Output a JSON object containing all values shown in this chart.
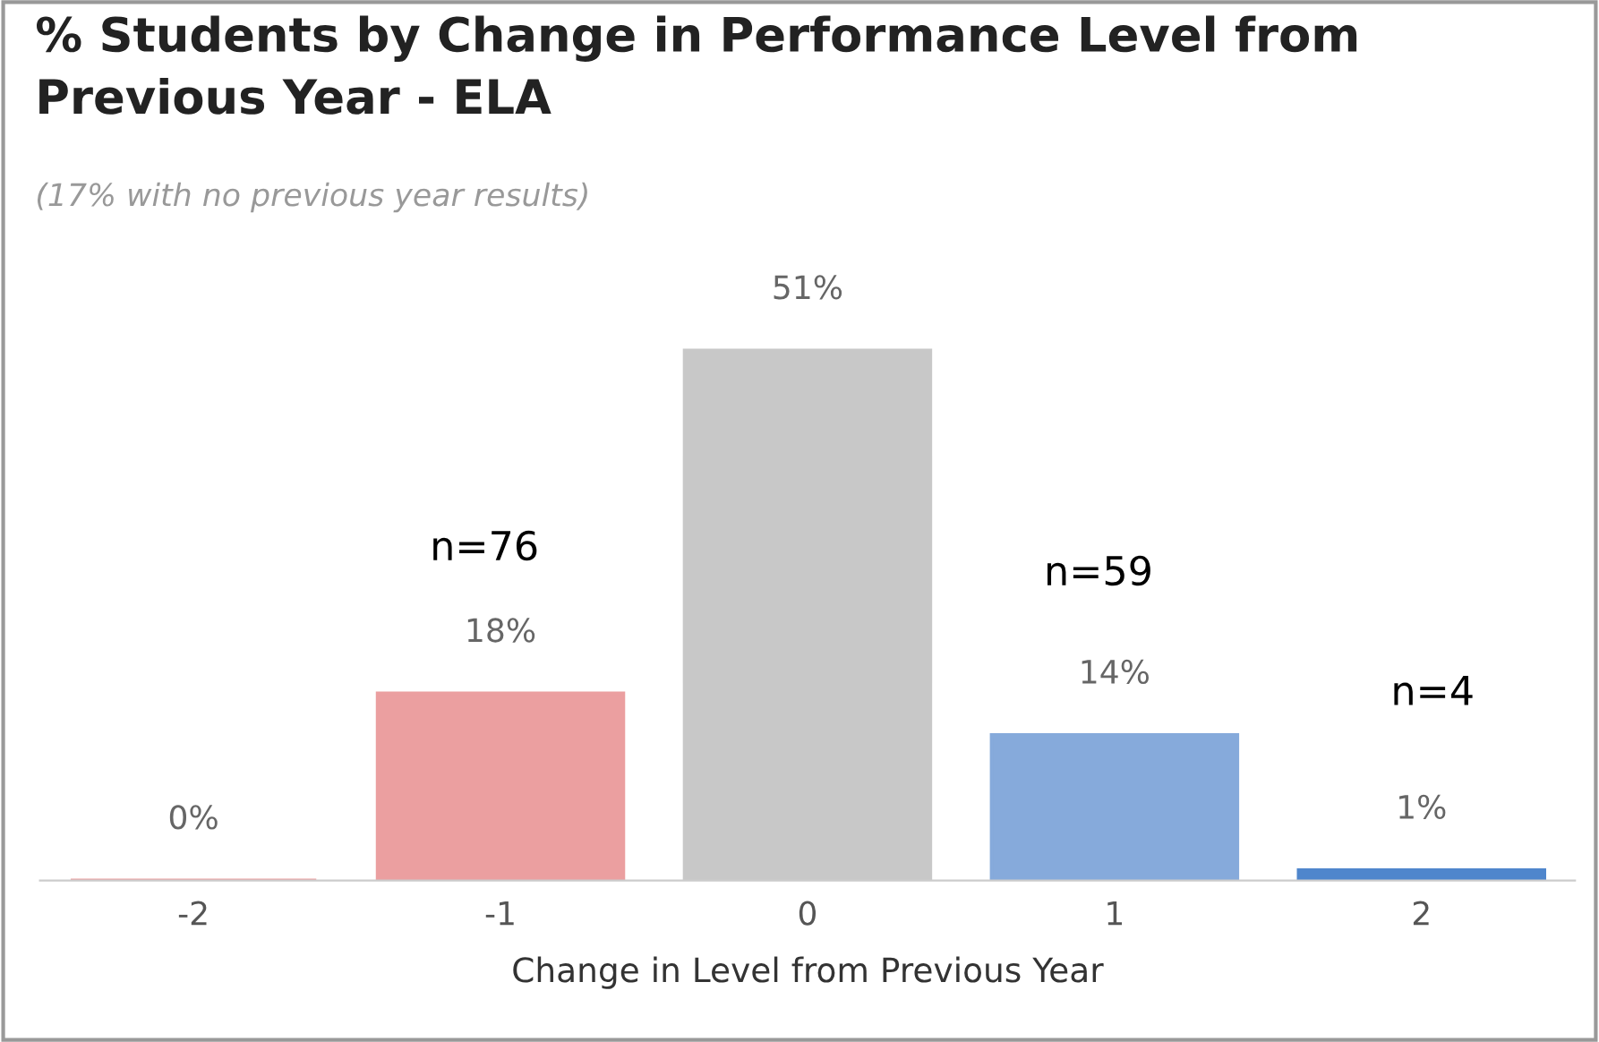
{
  "chart_data": {
    "type": "bar",
    "title": "% Students by Change in Performance Level from\nPrevious Year - ELA",
    "subtitle": "(17% with no previous year results)",
    "xlabel": "Change in Level from Previous Year",
    "categories": [
      "-2",
      "-1",
      "0",
      "1",
      "2"
    ],
    "values": [
      0,
      18,
      51,
      14,
      1
    ],
    "colors": [
      "#eb9fa0",
      "#eb9fa0",
      "#c8c8c8",
      "#86aadb",
      "#4f86cc"
    ],
    "value_labels": [
      "0%",
      "18%",
      "51%",
      "14%",
      "1%"
    ],
    "annotations": [
      "n=76",
      "n=59",
      "n=4"
    ],
    "grid": false,
    "legend": false
  }
}
